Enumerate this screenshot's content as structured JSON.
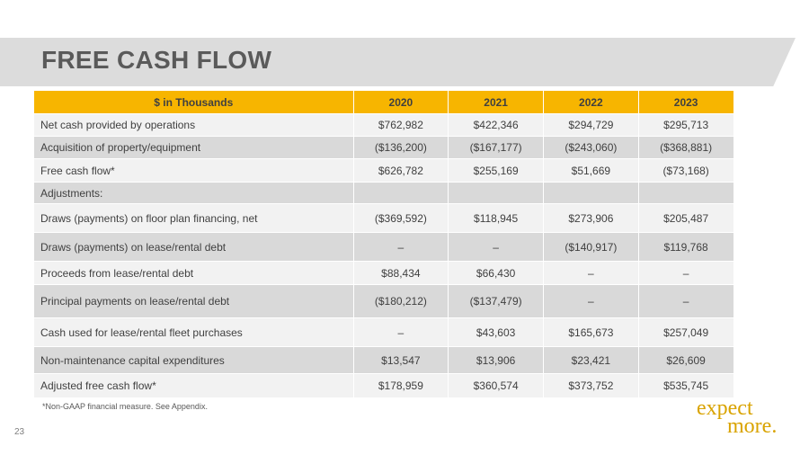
{
  "page": {
    "title": "FREE CASH FLOW",
    "page_number": "23",
    "footnote": "*Non-GAAP financial measure.  See Appendix."
  },
  "logo": {
    "line1": "expect",
    "line2": "more."
  },
  "colors": {
    "header_bg": "#f7b500",
    "row_light": "#f2f2f2",
    "row_dark": "#d9d9d9",
    "title_band": "#dcdcdc",
    "title_text": "#5a5a5a",
    "logo": "#d9a300"
  },
  "table": {
    "headers": [
      "$ in Thousands",
      "2020",
      "2021",
      "2022",
      "2023"
    ],
    "rows": [
      {
        "label": "Net cash provided by operations",
        "values": [
          "$762,982",
          "$422,346",
          "$294,729",
          "$295,713"
        ]
      },
      {
        "label": "Acquisition of property/equipment",
        "values": [
          "($136,200)",
          "($167,177)",
          "($243,060)",
          "($368,881)"
        ]
      },
      {
        "label": "Free cash flow*",
        "values": [
          "$626,782",
          "$255,169",
          "$51,669",
          "($73,168)"
        ]
      },
      {
        "label": "Adjustments:",
        "values": [
          "",
          "",
          "",
          ""
        ]
      },
      {
        "label": "Draws (payments) on floor plan financing, net",
        "values": [
          "($369,592)",
          "$118,945",
          "$273,906",
          "$205,487"
        ]
      },
      {
        "label": "Draws (payments) on lease/rental debt",
        "values": [
          "–",
          "–",
          "($140,917)",
          "$119,768"
        ]
      },
      {
        "label": "Proceeds from lease/rental debt",
        "values": [
          "$88,434",
          "$66,430",
          "–",
          "–"
        ]
      },
      {
        "label": "Principal payments on lease/rental debt",
        "values": [
          "($180,212)",
          "($137,479)",
          "–",
          "–"
        ]
      },
      {
        "label": "Cash used for lease/rental fleet  purchases",
        "values": [
          "–",
          "$43,603",
          "$165,673",
          "$257,049"
        ]
      },
      {
        "label": "Non-maintenance capital expenditures",
        "values": [
          "$13,547",
          "$13,906",
          "$23,421",
          "$26,609"
        ]
      },
      {
        "label": "Adjusted free cash flow*",
        "values": [
          "$178,959",
          "$360,574",
          "$373,752",
          "$535,745"
        ]
      }
    ]
  }
}
